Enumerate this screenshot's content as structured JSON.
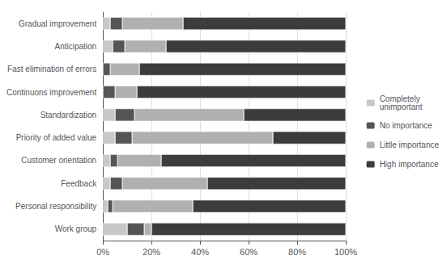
{
  "chart_data": {
    "type": "bar",
    "orientation": "horizontal",
    "stacked": true,
    "categories": [
      "Gradual improvement",
      "Anticipation",
      "Fast elimination of errors",
      "Continuons improvement",
      "Standardization",
      "Priority of added value",
      "Customer orientation",
      "Feedback",
      "Personal responsibility",
      "Work group"
    ],
    "series": [
      {
        "name": "Completely\nunimportant",
        "color": "#c8c8c8",
        "values": [
          3,
          4,
          0,
          0,
          5,
          5,
          3,
          3,
          2,
          10
        ]
      },
      {
        "name": "No importance",
        "color": "#555555",
        "values": [
          5,
          5,
          3,
          5,
          8,
          7,
          3,
          5,
          2,
          7
        ]
      },
      {
        "name": "Little importance",
        "color": "#b0b0b0",
        "values": [
          25,
          17,
          12,
          9,
          45,
          58,
          18,
          35,
          33,
          3
        ]
      },
      {
        "name": "High importance",
        "color": "#3c3c3c",
        "values": [
          67,
          74,
          85,
          86,
          42,
          30,
          76,
          57,
          63,
          80
        ]
      }
    ],
    "xlim": [
      0,
      100
    ],
    "xticks": [
      {
        "value": 0,
        "label": "0%"
      },
      {
        "value": 20,
        "label": "20%"
      },
      {
        "value": 40,
        "label": "40%"
      },
      {
        "value": 60,
        "label": "60%"
      },
      {
        "value": 80,
        "label": "80%"
      },
      {
        "value": 100,
        "label": "100%"
      }
    ],
    "grid": true,
    "legend": "right"
  }
}
